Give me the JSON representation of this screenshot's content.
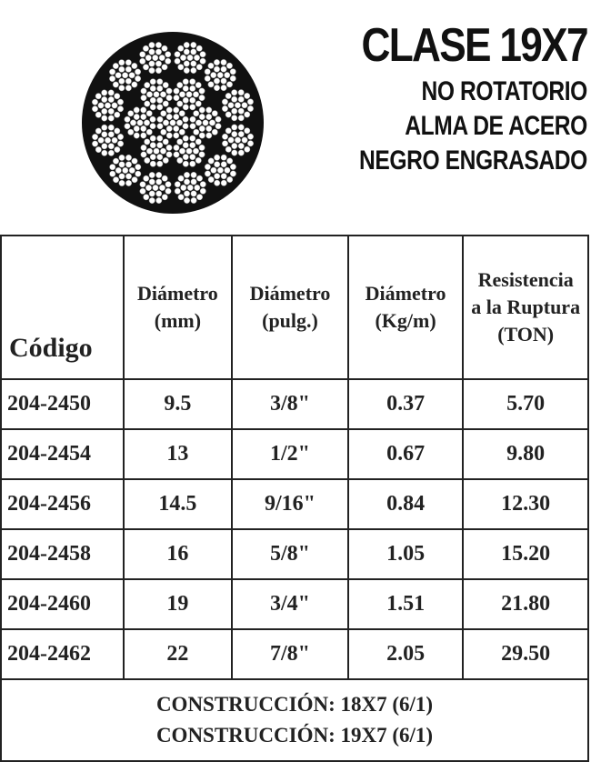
{
  "header": {
    "title": "CLASE 19X7",
    "lines": [
      "NO ROTATORIO",
      "ALMA DE ACERO",
      "NEGRO ENGRASADO"
    ]
  },
  "table": {
    "headers": [
      [
        "Código"
      ],
      [
        "Diámetro",
        "(mm)"
      ],
      [
        "Diámetro",
        "(pulg.)"
      ],
      [
        "Diámetro",
        "(Kg/m)"
      ],
      [
        "Resistencia",
        "a la Ruptura",
        "(TON)"
      ]
    ],
    "rows": [
      [
        "204-2450",
        "9.5",
        "3/8\"",
        "0.37",
        "5.70"
      ],
      [
        "204-2454",
        "13",
        "1/2\"",
        "0.67",
        "9.80"
      ],
      [
        "204-2456",
        "14.5",
        "9/16\"",
        "0.84",
        "12.30"
      ],
      [
        "204-2458",
        "16",
        "5/8\"",
        "1.05",
        "15.20"
      ],
      [
        "204-2460",
        "19",
        "3/4\"",
        "1.51",
        "21.80"
      ],
      [
        "204-2462",
        "22",
        "7/8\"",
        "2.05",
        "29.50"
      ]
    ],
    "footer": [
      "CONSTRUCCIÓN: 18X7 (6/1)",
      "CONSTRUCCIÓN: 19X7 (6/1)"
    ]
  }
}
